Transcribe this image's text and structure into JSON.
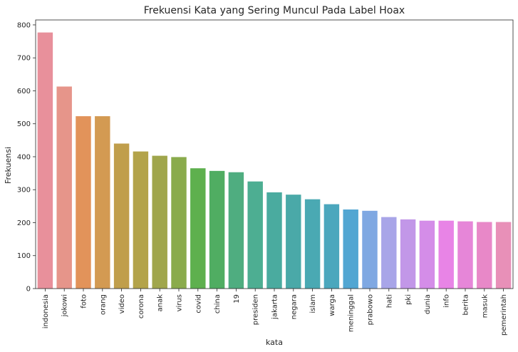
{
  "chart_data": {
    "type": "bar",
    "title": "Frekuensi Kata yang Sering Muncul Pada Label Hoax",
    "xlabel": "kata",
    "ylabel": "Frekuensi",
    "ylim": [
      0,
      815
    ],
    "yticks": [
      0,
      100,
      200,
      300,
      400,
      500,
      600,
      700,
      800
    ],
    "grid": false,
    "legend": "none",
    "categories": [
      "indonesia",
      "jokowi",
      "foto",
      "orang",
      "video",
      "corona",
      "anak",
      "virus",
      "covid",
      "china",
      "19",
      "presiden",
      "jakarta",
      "negara",
      "islam",
      "warga",
      "meninggal",
      "prabowo",
      "hati",
      "pki",
      "dunia",
      "info",
      "berita",
      "masuk",
      "pemerintah"
    ],
    "values": [
      777,
      613,
      523,
      523,
      440,
      416,
      403,
      399,
      365,
      357,
      353,
      325,
      292,
      285,
      271,
      256,
      240,
      236,
      217,
      210,
      206,
      206,
      204,
      202,
      202
    ],
    "colors": [
      "#e8909b",
      "#e6958a",
      "#e2935a",
      "#d39a52",
      "#c09e4b",
      "#b3a34a",
      "#a0a64c",
      "#8aab4c",
      "#5eb04e",
      "#50ad62",
      "#4fad80",
      "#4dae92",
      "#4aab9f",
      "#4aa9a8",
      "#4aa9b3",
      "#4ba7bd",
      "#52a6d2",
      "#7fa8e2",
      "#a8a5e8",
      "#c297e8",
      "#d48de8",
      "#e884e6",
      "#e686d8",
      "#e888c8",
      "#e890b8"
    ]
  }
}
